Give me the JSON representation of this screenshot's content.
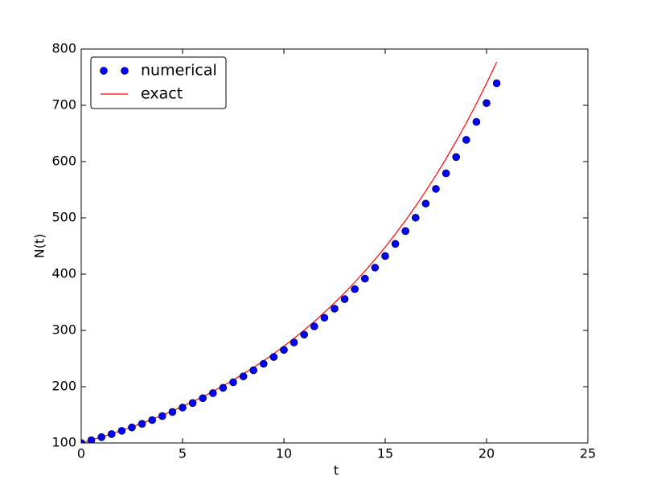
{
  "chart_data": {
    "type": "line",
    "xlabel": "t",
    "ylabel": "N(t)",
    "x": [
      0,
      0.5,
      1,
      1.5,
      2,
      2.5,
      3,
      3.5,
      4,
      4.5,
      5,
      5.5,
      6,
      6.5,
      7,
      7.5,
      8,
      8.5,
      9,
      9.5,
      10,
      10.5,
      11,
      11.5,
      12,
      12.5,
      13,
      13.5,
      14,
      14.5,
      15,
      15.5,
      16,
      16.5,
      17,
      17.5,
      18,
      18.5,
      19,
      19.5,
      20,
      20.5
    ],
    "series": [
      {
        "name": "numerical",
        "color": "#0000ff",
        "style": "marker",
        "values": [
          100,
          105,
          110.3,
          115.8,
          121.6,
          127.6,
          134,
          140.7,
          147.7,
          155.1,
          162.9,
          171,
          179.6,
          188.6,
          198,
          207.9,
          218.3,
          229.2,
          240.7,
          252.7,
          265.3,
          278.6,
          292.5,
          307.2,
          322.5,
          338.6,
          355.6,
          373.4,
          392,
          411.6,
          432.2,
          453.8,
          476.5,
          500.3,
          525.3,
          551.6,
          579.2,
          608.1,
          638.6,
          670.5,
          704,
          739.2
        ]
      },
      {
        "name": "exact",
        "color": "#ff0000",
        "style": "line",
        "values": [
          100,
          105.1,
          110.5,
          116.2,
          122.1,
          128.4,
          135,
          141.9,
          149.2,
          156.8,
          164.9,
          173.3,
          182.2,
          191.6,
          201.4,
          211.7,
          222.6,
          234,
          246,
          258.6,
          271.8,
          285.8,
          300.4,
          315.8,
          332,
          349,
          366.9,
          385.7,
          405.5,
          426.3,
          448.2,
          471.2,
          495.3,
          520.7,
          547.4,
          575.5,
          605,
          636,
          668.6,
          702.9,
          738.9,
          776.8
        ]
      }
    ],
    "xlim": [
      0,
      25
    ],
    "xticks": [
      0,
      5,
      10,
      15,
      20,
      25
    ],
    "ylim": [
      100,
      800
    ],
    "yticks": [
      100,
      200,
      300,
      400,
      500,
      600,
      700,
      800
    ],
    "legend": "upper left"
  }
}
